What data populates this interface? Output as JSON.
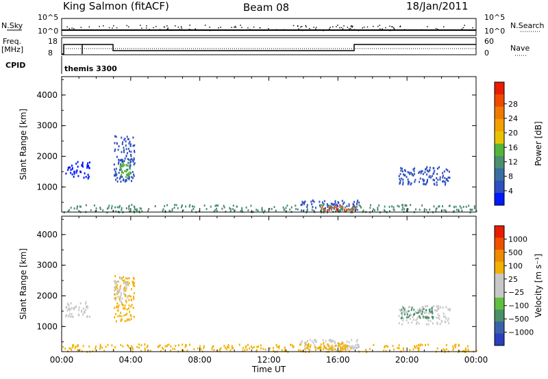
{
  "header": {
    "station": "King Salmon (fitACF)",
    "beam": "Beam 08",
    "date": "18/Jan/2011"
  },
  "top_panels": {
    "nsky_label": "N.Sky",
    "nsky_ticks": [
      "10^5",
      "10^0"
    ],
    "nsearch_label": "N.Search",
    "nsearch_ticks": [
      "10^5",
      "10^0"
    ],
    "freq_label_1": "Freq.",
    "freq_label_2": "[MHz]",
    "freq_ticks": [
      "18",
      "8"
    ],
    "nave_label": "Nave",
    "nave_ticks": [
      "60",
      "0"
    ],
    "cpid_label": "CPID",
    "cpid_value": "themis 3300"
  },
  "chart_data": [
    {
      "type": "heatmap",
      "title": "",
      "ylabel": "Slant Range [km]",
      "xlabel": "",
      "xlim": [
        0,
        24
      ],
      "ylim": [
        180,
        4600
      ],
      "y_ticks": [
        "1000",
        "2000",
        "3000",
        "4000"
      ],
      "colorbar_label": "Power [dB]",
      "colorbar_ticks": [
        "4",
        "8",
        "12",
        "16",
        "20",
        "24",
        "28"
      ],
      "colorbar_colors": [
        "#0019ff",
        "#2d4fbf",
        "#3a6ea0",
        "#4b8f6e",
        "#55b53a",
        "#e8c400",
        "#f2a000",
        "#f07a00",
        "#f04a00",
        "#e81c00"
      ],
      "blobs": [
        {
          "x": [
            3.0,
            4.2
          ],
          "y": [
            1200,
            2700
          ],
          "v": "#2d4fbf"
        },
        {
          "x": [
            3.3,
            4.0
          ],
          "y": [
            1350,
            1800
          ],
          "v": "#55b53a"
        },
        {
          "x": [
            0.2,
            1.6
          ],
          "y": [
            1300,
            1850
          ],
          "v": "#0019ff"
        },
        {
          "x": [
            19.5,
            22.5
          ],
          "y": [
            1100,
            1700
          ],
          "v": "#2d4fbf"
        },
        {
          "x": [
            13.8,
            17.2
          ],
          "y": [
            250,
            600
          ],
          "v": "#2d4fbf"
        },
        {
          "x": [
            15.0,
            17.0
          ],
          "y": [
            250,
            400
          ],
          "v": "#f04a00"
        },
        {
          "x": [
            0.0,
            24.0
          ],
          "y": [
            200,
            450
          ],
          "v": "#4b8f6e"
        }
      ]
    },
    {
      "type": "heatmap",
      "title": "",
      "ylabel": "Slant Range [km]",
      "xlabel": "Time UT",
      "xlim": [
        0,
        24
      ],
      "ylim": [
        180,
        4600
      ],
      "y_ticks": [
        "1000",
        "2000",
        "3000",
        "4000"
      ],
      "x_ticks": [
        "00:00",
        "04:00",
        "08:00",
        "12:00",
        "16:00",
        "20:00",
        "00:00"
      ],
      "colorbar_label": "Velocity [m s⁻¹]",
      "colorbar_ticks": [
        "1000",
        "500",
        "100",
        "25",
        "−25",
        "−100",
        "−500",
        "−1000"
      ],
      "colorbar_colors": [
        "#2a3fbf",
        "#3a62a8",
        "#4a8f6a",
        "#5fc040",
        "#c8c8c8",
        "#c8c8c8",
        "#f2b000",
        "#f08a00",
        "#f05000",
        "#e81c00"
      ],
      "blobs": [
        {
          "x": [
            3.0,
            4.2
          ],
          "y": [
            1200,
            2700
          ],
          "v": "#f2b000"
        },
        {
          "x": [
            3.0,
            3.8
          ],
          "y": [
            1800,
            2600
          ],
          "v": "#c8c8c8"
        },
        {
          "x": [
            0.2,
            1.6
          ],
          "y": [
            1300,
            1850
          ],
          "v": "#c8c8c8"
        },
        {
          "x": [
            19.5,
            22.5
          ],
          "y": [
            1100,
            1700
          ],
          "v": "#c8c8c8"
        },
        {
          "x": [
            19.5,
            21.5
          ],
          "y": [
            1300,
            1650
          ],
          "v": "#4a8f6a"
        },
        {
          "x": [
            13.8,
            17.2
          ],
          "y": [
            250,
            600
          ],
          "v": "#c8c8c8"
        },
        {
          "x": [
            14.0,
            16.5
          ],
          "y": [
            250,
            500
          ],
          "v": "#f2b000"
        },
        {
          "x": [
            0.0,
            24.0
          ],
          "y": [
            200,
            450
          ],
          "v": "#f2b000"
        }
      ]
    }
  ]
}
